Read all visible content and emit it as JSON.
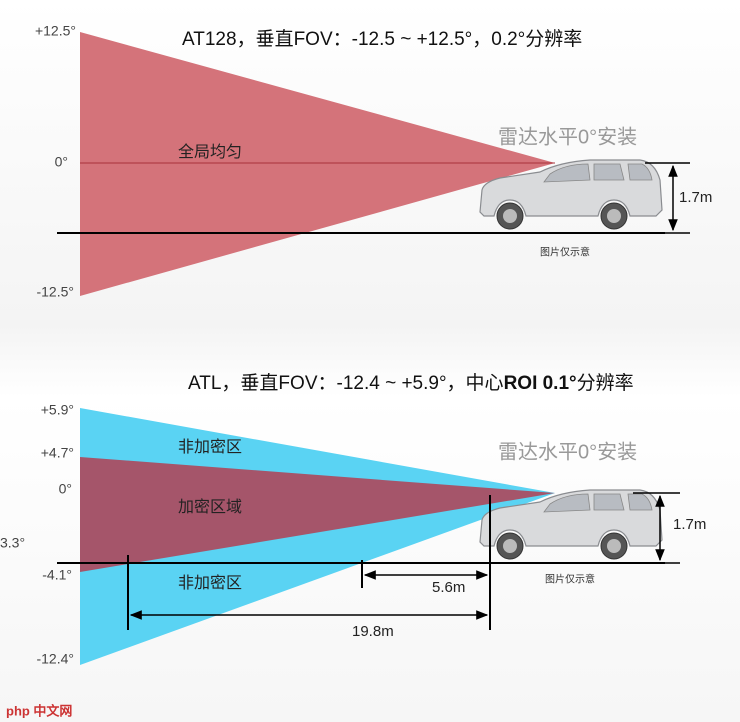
{
  "panels": [
    {
      "title": "AT128，垂直FOV：-12.5 ~ +12.5°，0.2°分辨率",
      "angle_labels": [
        "+12.5°",
        "0°",
        "-12.5°"
      ],
      "zone_labels": [
        "全局均匀"
      ],
      "mount_label": "雷达水平0°安装",
      "height_label": "1.7m",
      "note": "图片仅示意"
    },
    {
      "title_parts": [
        "ATL，垂直FOV：-12.4 ~ +5.9°，中心",
        "ROI  0.1°",
        "分辨率"
      ],
      "angle_labels": [
        "+5.9°",
        "+4.7°",
        "0°",
        "3.3°",
        "-4.1°",
        "-12.4°"
      ],
      "zone_labels": [
        "非加密区",
        "加密区域",
        "非加密区"
      ],
      "mount_label": "雷达水平0°安装",
      "height_label": "1.7m",
      "distance_labels": [
        "5.6m",
        "19.8m"
      ],
      "note": "图片仅示意"
    }
  ],
  "watermark": "php 中文网"
}
